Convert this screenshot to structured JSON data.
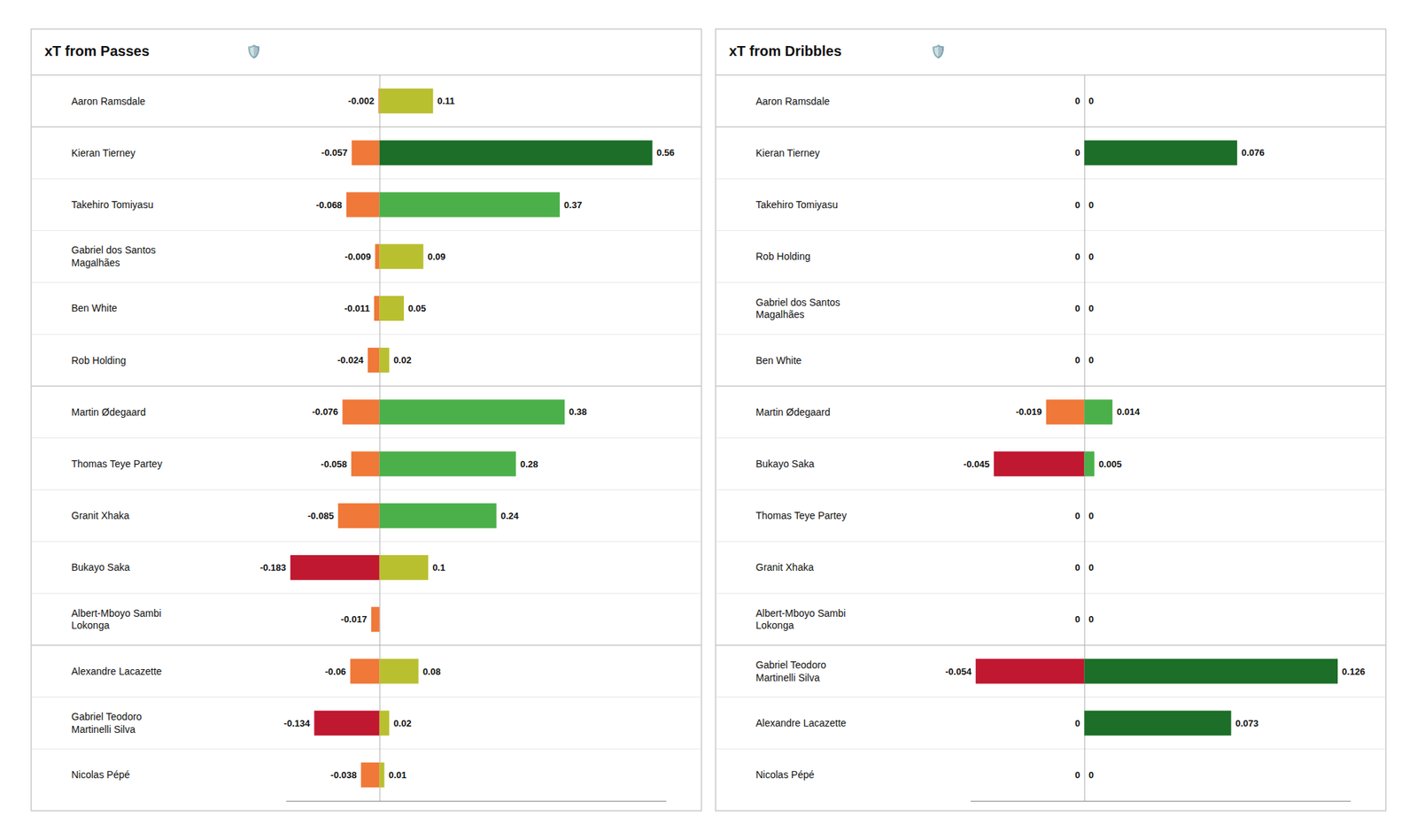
{
  "chart_data": [
    {
      "type": "bar",
      "orientation": "horizontal",
      "stacked": true,
      "title": "xT from Passes",
      "annotations": [
        "🛡️"
      ],
      "categories": [
        "Aaron Ramsdale",
        "Kieran Tierney",
        "Takehiro Tomiyasu",
        "Gabriel dos Santos\nMagalhães",
        "Ben White",
        "Rob Holding",
        "Martin Ødegaard",
        "Thomas Teye Partey",
        "Granit Xhaka",
        "Bukayo Saka",
        "Albert-Mboyo Sambi\nLokonga",
        "Alexandre Lacazette",
        "Gabriel Teodoro\nMartinelli Silva",
        "Nicolas Pépé"
      ],
      "series": [
        {
          "values": [
            -0.002,
            -0.057,
            -0.068,
            -0.009,
            -0.011,
            -0.024,
            -0.076,
            -0.058,
            -0.085,
            -0.183,
            -0.017,
            -0.06,
            -0.134,
            -0.038
          ],
          "colors": [
            "#F07838",
            "#F07838",
            "#F07838",
            "#F07838",
            "#F07838",
            "#F07838",
            "#F07838",
            "#F07838",
            "#F07838",
            "#C01830",
            "#F07838",
            "#F07838",
            "#C01830",
            "#F07838"
          ]
        },
        {
          "values": [
            0.11,
            0.56,
            0.37,
            0.09,
            0.05,
            0.02,
            0.38,
            0.28,
            0.24,
            0.1,
            0.0,
            0.08,
            0.02,
            0.01
          ],
          "colors": [
            "#B9C030",
            "#1C6E28",
            "#4BB04A",
            "#B9C030",
            "#B9C030",
            "#B9C030",
            "#4BB04A",
            "#4BB04A",
            "#4BB04A",
            "#B9C030",
            "#B9C030",
            "#B9C030",
            "#B9C030",
            "#B9C030"
          ],
          "value_labels": [
            "0.11",
            "0.56",
            "0.37",
            "0.09",
            "0.05",
            "0.02",
            "0.38",
            "0.28",
            "0.24",
            "0.1",
            null,
            "0.08",
            "0.02",
            "0.01"
          ]
        }
      ],
      "xlim": [
        -0.19215,
        0.588
      ],
      "xticks": [
        0
      ],
      "grid": false,
      "data_labels": true,
      "tick_labels": "y"
    },
    {
      "type": "bar",
      "orientation": "horizontal",
      "stacked": true,
      "title": "xT from Dribbles",
      "annotations": [
        "🛡️"
      ],
      "categories": [
        "Aaron Ramsdale",
        "Kieran Tierney",
        "Takehiro Tomiyasu",
        "Rob Holding",
        "Gabriel dos Santos\nMagalhães",
        "Ben White",
        "Martin Ødegaard",
        "Bukayo Saka",
        "Thomas Teye Partey",
        "Granit Xhaka",
        "Albert-Mboyo Sambi\nLokonga",
        "Gabriel Teodoro\nMartinelli Silva",
        "Alexandre Lacazette",
        "Nicolas Pépé"
      ],
      "series": [
        {
          "values": [
            0.0,
            0.0,
            0.0,
            0.0,
            0.0,
            0.0,
            -0.019,
            -0.045,
            0.0,
            0.0,
            0.0,
            -0.054,
            0.0,
            0.0
          ],
          "colors": [
            "#F07838",
            "#F07838",
            "#F07838",
            "#F07838",
            "#F07838",
            "#F07838",
            "#F07838",
            "#C01830",
            "#F07838",
            "#F07838",
            "#F07838",
            "#C01830",
            "#F07838",
            "#F07838"
          ]
        },
        {
          "values": [
            0.0,
            0.076,
            0.0,
            0.0,
            0.0,
            0.0,
            0.014,
            0.005,
            0.0,
            0.0,
            0.0,
            0.126,
            0.073,
            0.0
          ],
          "colors": [
            "#B9C030",
            "#1C6E28",
            "#B9C030",
            "#B9C030",
            "#B9C030",
            "#B9C030",
            "#4BB04A",
            "#4BB04A",
            "#B9C030",
            "#B9C030",
            "#B9C030",
            "#1C6E28",
            "#1C6E28",
            "#B9C030"
          ]
        }
      ],
      "xlim": [
        -0.0567,
        0.1323
      ],
      "xticks": [
        0
      ],
      "grid": false,
      "data_labels": true,
      "tick_labels": "y"
    }
  ]
}
